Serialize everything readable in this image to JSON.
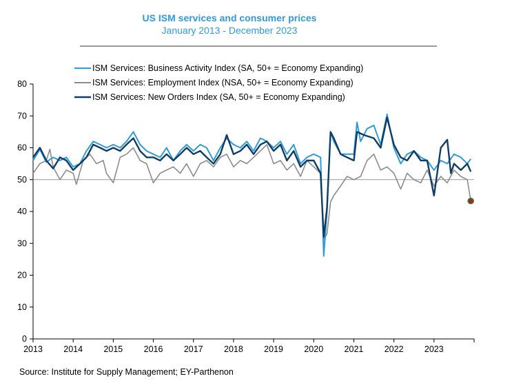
{
  "chart_data": {
    "type": "line",
    "title": "US ISM services and consumer prices",
    "subtitle": "January 2013 - December 2023",
    "source": "Source: Institute for Supply Management; EY-Parthenon",
    "ylim": [
      0,
      80
    ],
    "yticks": [
      0,
      10,
      20,
      30,
      40,
      50,
      60,
      70,
      80
    ],
    "xlim": [
      2013,
      2024
    ],
    "xticks": [
      "2013",
      "2014",
      "2015",
      "2016",
      "2017",
      "2018",
      "2019",
      "2020",
      "2021",
      "2022",
      "2023"
    ],
    "reference_line": 50,
    "legend_position": "top-left",
    "colors": {
      "activity": "#2E9BDB",
      "employment": "#8C8C8C",
      "orders": "#0E3D66",
      "marker_fill": "#B22222",
      "marker_edge": "#2E7D32"
    },
    "marker": {
      "series": "employment",
      "x": 2023.917,
      "y": 43.3
    },
    "series": [
      {
        "key": "activity",
        "name": "ISM Services: Business Activity Index (SA, 50+ = Economy Expanding)",
        "points": [
          [
            2013.0,
            56.0
          ],
          [
            2013.17,
            59.5
          ],
          [
            2013.33,
            55.5
          ],
          [
            2013.5,
            57.0
          ],
          [
            2013.67,
            56.0
          ],
          [
            2013.83,
            57.0
          ],
          [
            2014.0,
            54.0
          ],
          [
            2014.17,
            55.0
          ],
          [
            2014.33,
            59.0
          ],
          [
            2014.5,
            62.0
          ],
          [
            2014.67,
            61.0
          ],
          [
            2014.83,
            60.0
          ],
          [
            2015.0,
            61.0
          ],
          [
            2015.17,
            60.0
          ],
          [
            2015.33,
            62.0
          ],
          [
            2015.5,
            65.0
          ],
          [
            2015.67,
            61.0
          ],
          [
            2015.83,
            59.0
          ],
          [
            2016.0,
            58.0
          ],
          [
            2016.17,
            57.0
          ],
          [
            2016.33,
            60.0
          ],
          [
            2016.5,
            56.0
          ],
          [
            2016.67,
            59.0
          ],
          [
            2016.83,
            61.0
          ],
          [
            2017.0,
            59.0
          ],
          [
            2017.17,
            61.0
          ],
          [
            2017.33,
            60.0
          ],
          [
            2017.5,
            56.0
          ],
          [
            2017.67,
            60.0
          ],
          [
            2017.83,
            63.0
          ],
          [
            2018.0,
            61.0
          ],
          [
            2018.17,
            60.0
          ],
          [
            2018.33,
            62.0
          ],
          [
            2018.5,
            59.0
          ],
          [
            2018.67,
            63.0
          ],
          [
            2018.83,
            62.0
          ],
          [
            2019.0,
            60.0
          ],
          [
            2019.17,
            62.0
          ],
          [
            2019.33,
            58.0
          ],
          [
            2019.5,
            61.0
          ],
          [
            2019.67,
            55.0
          ],
          [
            2019.83,
            57.0
          ],
          [
            2020.0,
            58.0
          ],
          [
            2020.17,
            57.0
          ],
          [
            2020.25,
            26.0
          ],
          [
            2020.33,
            40.0
          ],
          [
            2020.42,
            65.0
          ],
          [
            2020.5,
            62.0
          ],
          [
            2020.67,
            58.0
          ],
          [
            2020.83,
            58.0
          ],
          [
            2021.0,
            58.0
          ],
          [
            2021.08,
            68.0
          ],
          [
            2021.17,
            62.0
          ],
          [
            2021.33,
            66.0
          ],
          [
            2021.5,
            67.0
          ],
          [
            2021.67,
            61.0
          ],
          [
            2021.83,
            70.5
          ],
          [
            2022.0,
            60.0
          ],
          [
            2022.17,
            55.0
          ],
          [
            2022.33,
            58.0
          ],
          [
            2022.5,
            59.0
          ],
          [
            2022.67,
            57.0
          ],
          [
            2022.83,
            56.0
          ],
          [
            2023.0,
            53.0
          ],
          [
            2023.17,
            56.0
          ],
          [
            2023.33,
            55.0
          ],
          [
            2023.5,
            58.0
          ],
          [
            2023.67,
            57.0
          ],
          [
            2023.83,
            55.0
          ],
          [
            2023.917,
            56.5
          ]
        ]
      },
      {
        "key": "employment",
        "name": "ISM Services: Employment Index (NSA, 50+ = Economy Expanding)",
        "points": [
          [
            2013.0,
            52.0
          ],
          [
            2013.17,
            55.0
          ],
          [
            2013.33,
            56.0
          ],
          [
            2013.42,
            59.5
          ],
          [
            2013.5,
            54.0
          ],
          [
            2013.67,
            50.0
          ],
          [
            2013.83,
            53.0
          ],
          [
            2014.0,
            52.0
          ],
          [
            2014.08,
            48.5
          ],
          [
            2014.25,
            56.0
          ],
          [
            2014.42,
            58.0
          ],
          [
            2014.58,
            55.0
          ],
          [
            2014.75,
            56.0
          ],
          [
            2014.83,
            52.0
          ],
          [
            2015.0,
            49.0
          ],
          [
            2015.17,
            57.0
          ],
          [
            2015.33,
            58.0
          ],
          [
            2015.5,
            60.0
          ],
          [
            2015.67,
            56.0
          ],
          [
            2015.83,
            55.0
          ],
          [
            2016.0,
            49.0
          ],
          [
            2016.17,
            52.0
          ],
          [
            2016.33,
            53.0
          ],
          [
            2016.5,
            54.0
          ],
          [
            2016.67,
            52.0
          ],
          [
            2016.83,
            55.0
          ],
          [
            2017.0,
            51.0
          ],
          [
            2017.17,
            55.0
          ],
          [
            2017.33,
            56.0
          ],
          [
            2017.5,
            54.0
          ],
          [
            2017.67,
            57.0
          ],
          [
            2017.83,
            58.0
          ],
          [
            2018.0,
            54.0
          ],
          [
            2018.17,
            56.0
          ],
          [
            2018.33,
            55.0
          ],
          [
            2018.5,
            57.0
          ],
          [
            2018.67,
            59.0
          ],
          [
            2018.83,
            61.0
          ],
          [
            2019.0,
            55.0
          ],
          [
            2019.17,
            56.0
          ],
          [
            2019.33,
            53.0
          ],
          [
            2019.5,
            55.0
          ],
          [
            2019.67,
            51.0
          ],
          [
            2019.83,
            56.0
          ],
          [
            2020.0,
            54.0
          ],
          [
            2020.17,
            52.0
          ],
          [
            2020.25,
            31.0
          ],
          [
            2020.33,
            33.0
          ],
          [
            2020.42,
            43.0
          ],
          [
            2020.5,
            45.0
          ],
          [
            2020.67,
            48.0
          ],
          [
            2020.83,
            51.0
          ],
          [
            2021.0,
            50.0
          ],
          [
            2021.17,
            51.0
          ],
          [
            2021.33,
            56.0
          ],
          [
            2021.5,
            58.0
          ],
          [
            2021.67,
            53.0
          ],
          [
            2021.83,
            54.0
          ],
          [
            2022.0,
            52.0
          ],
          [
            2022.17,
            47.0
          ],
          [
            2022.33,
            52.0
          ],
          [
            2022.5,
            50.0
          ],
          [
            2022.67,
            49.0
          ],
          [
            2022.83,
            53.0
          ],
          [
            2023.0,
            48.0
          ],
          [
            2023.17,
            51.0
          ],
          [
            2023.33,
            49.0
          ],
          [
            2023.5,
            53.0
          ],
          [
            2023.67,
            51.0
          ],
          [
            2023.83,
            50.0
          ],
          [
            2023.917,
            43.3
          ]
        ]
      },
      {
        "key": "orders",
        "name": "ISM Services: New Orders Index (SA, 50+ = Economy Expanding)",
        "points": [
          [
            2013.0,
            57.0
          ],
          [
            2013.17,
            60.0
          ],
          [
            2013.33,
            56.0
          ],
          [
            2013.5,
            53.5
          ],
          [
            2013.67,
            57.0
          ],
          [
            2013.83,
            56.0
          ],
          [
            2014.0,
            53.0
          ],
          [
            2014.17,
            55.0
          ],
          [
            2014.33,
            57.0
          ],
          [
            2014.5,
            61.0
          ],
          [
            2014.67,
            60.0
          ],
          [
            2014.83,
            59.0
          ],
          [
            2015.0,
            60.0
          ],
          [
            2015.17,
            59.0
          ],
          [
            2015.33,
            61.0
          ],
          [
            2015.5,
            63.0
          ],
          [
            2015.67,
            59.0
          ],
          [
            2015.83,
            57.0
          ],
          [
            2016.0,
            57.0
          ],
          [
            2016.17,
            56.0
          ],
          [
            2016.33,
            58.0
          ],
          [
            2016.5,
            56.0
          ],
          [
            2016.67,
            58.0
          ],
          [
            2016.83,
            60.0
          ],
          [
            2017.0,
            58.0
          ],
          [
            2017.17,
            59.0
          ],
          [
            2017.33,
            57.0
          ],
          [
            2017.5,
            55.0
          ],
          [
            2017.67,
            58.0
          ],
          [
            2017.83,
            64.0
          ],
          [
            2018.0,
            58.0
          ],
          [
            2018.17,
            59.0
          ],
          [
            2018.33,
            61.0
          ],
          [
            2018.5,
            58.0
          ],
          [
            2018.67,
            61.0
          ],
          [
            2018.83,
            62.0
          ],
          [
            2019.0,
            59.0
          ],
          [
            2019.17,
            61.0
          ],
          [
            2019.33,
            56.0
          ],
          [
            2019.5,
            59.0
          ],
          [
            2019.67,
            54.0
          ],
          [
            2019.83,
            56.0
          ],
          [
            2020.0,
            56.0
          ],
          [
            2020.17,
            52.0
          ],
          [
            2020.25,
            32.0
          ],
          [
            2020.33,
            41.0
          ],
          [
            2020.42,
            65.0
          ],
          [
            2020.5,
            63.0
          ],
          [
            2020.67,
            58.0
          ],
          [
            2020.83,
            57.0
          ],
          [
            2021.0,
            56.0
          ],
          [
            2021.08,
            65.0
          ],
          [
            2021.25,
            64.0
          ],
          [
            2021.5,
            63.0
          ],
          [
            2021.67,
            60.0
          ],
          [
            2021.83,
            69.5
          ],
          [
            2022.0,
            61.0
          ],
          [
            2022.17,
            57.0
          ],
          [
            2022.33,
            56.0
          ],
          [
            2022.5,
            59.0
          ],
          [
            2022.67,
            56.0
          ],
          [
            2022.83,
            56.0
          ],
          [
            2023.0,
            45.0
          ],
          [
            2023.17,
            60.0
          ],
          [
            2023.33,
            62.5
          ],
          [
            2023.42,
            52.0
          ],
          [
            2023.5,
            55.0
          ],
          [
            2023.67,
            53.0
          ],
          [
            2023.83,
            55.0
          ],
          [
            2023.917,
            52.5
          ]
        ]
      }
    ]
  }
}
